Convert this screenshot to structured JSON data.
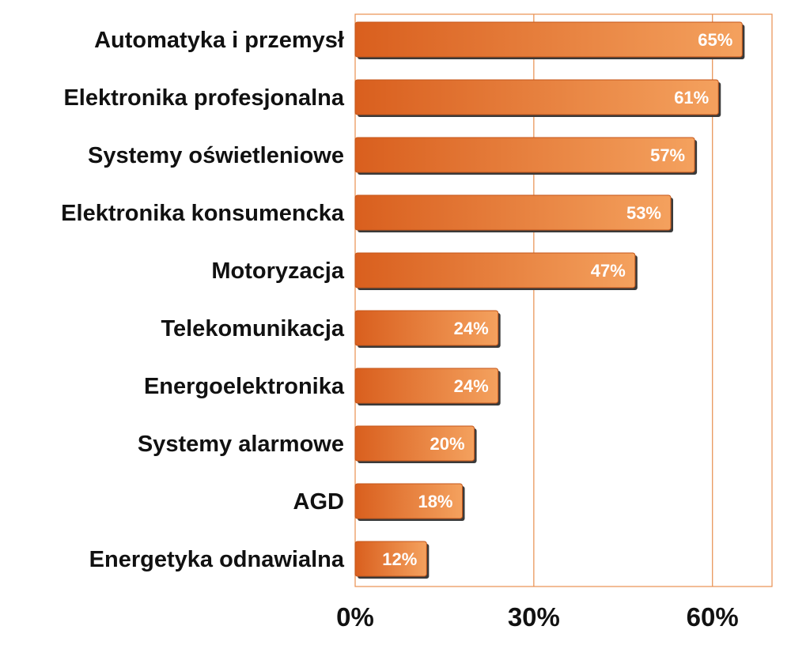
{
  "chart_data": {
    "type": "bar",
    "orientation": "horizontal",
    "categories": [
      "Automatyka i przemysł",
      "Elektronika profesjonalna",
      "Systemy oświetleniowe",
      "Elektronika konsumencka",
      "Motoryzacja",
      "Telekomunikacja",
      "Energoelektronika",
      "Systemy alarmowe",
      "AGD",
      "Energetyka odnawialna"
    ],
    "values": [
      65,
      61,
      57,
      53,
      47,
      24,
      24,
      20,
      18,
      12
    ],
    "value_labels": [
      "65%",
      "61%",
      "57%",
      "53%",
      "47%",
      "24%",
      "24%",
      "20%",
      "18%",
      "12%"
    ],
    "x_ticks": [
      0,
      30,
      60
    ],
    "x_tick_labels": [
      "0%",
      "30%",
      "60%"
    ],
    "xlim": [
      0,
      70
    ],
    "grid": "vertical",
    "legend": "none",
    "colors": {
      "bar_light": "#f4a15e",
      "bar_dark": "#d95f1e",
      "bar_shadow": "#3a3a3a",
      "frame": "#e8904f",
      "gridline": "#e8904f"
    }
  }
}
